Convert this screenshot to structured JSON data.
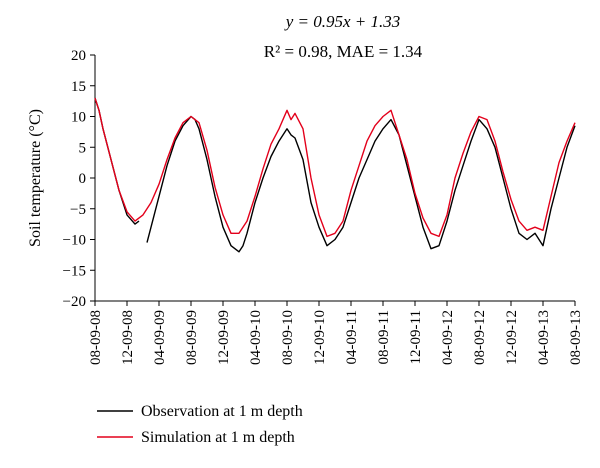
{
  "chart_data": {
    "type": "line",
    "title": "",
    "xlabel": "",
    "ylabel": "Soil temperature (°C)",
    "annotation": {
      "line1": "y = 0.95x + 1.33",
      "line2": "R² = 0.98, MAE = 1.34"
    },
    "ylim": [
      -20,
      20
    ],
    "yticks": [
      20,
      15,
      10,
      5,
      0,
      -5,
      -10,
      -15,
      -20
    ],
    "ytick_labels": [
      "20",
      "15",
      "10",
      "5",
      "0",
      "−5",
      "−10",
      "−15",
      "−20"
    ],
    "xlim": [
      0,
      60
    ],
    "xticks": [
      0,
      4,
      8,
      12,
      16,
      20,
      24,
      28,
      32,
      36,
      40,
      44,
      48,
      52,
      56,
      60
    ],
    "xtick_labels": [
      "08-09-08",
      "12-09-08",
      "04-09-09",
      "08-09-09",
      "12-09-09",
      "04-09-10",
      "08-09-10",
      "12-09-10",
      "04-09-11",
      "08-09-11",
      "12-09-11",
      "04-09-12",
      "08-09-12",
      "12-09-12",
      "04-09-13",
      "08-09-13"
    ],
    "grid": false,
    "legend_position": "bottom",
    "series": [
      {
        "name": "Observation at 1 m depth",
        "color": "#000000",
        "segments": [
          {
            "x": [
              0,
              0.5,
              1,
              2,
              3,
              4,
              5,
              5.5
            ],
            "y": [
              13,
              11,
              8,
              3,
              -2,
              -6,
              -7.5,
              -7
            ]
          },
          {
            "x": [
              6.5,
              7,
              8,
              9,
              10,
              11,
              12,
              12.5,
              13,
              14,
              15,
              16,
              17,
              18,
              18.5,
              19,
              20,
              21,
              22,
              23,
              24,
              24.5,
              25,
              26,
              27,
              28,
              29,
              30,
              31,
              32,
              33,
              34,
              35,
              36,
              37,
              38,
              39,
              40,
              41,
              42,
              43,
              44,
              45,
              46,
              47,
              48,
              49,
              50,
              51,
              52,
              53,
              54,
              55,
              56,
              57,
              58,
              59,
              60
            ],
            "y": [
              -10.5,
              -8,
              -3,
              2,
              6,
              8.5,
              10,
              9.5,
              8,
              3,
              -3,
              -8,
              -11,
              -12,
              -11,
              -9,
              -4,
              0,
              3.5,
              6,
              8,
              7,
              6.5,
              3,
              -4,
              -8,
              -11,
              -10,
              -8,
              -4,
              0,
              3,
              6,
              8,
              9.5,
              7,
              2,
              -3,
              -8,
              -11.5,
              -11,
              -7,
              -2,
              2,
              6,
              9.5,
              8,
              5,
              0,
              -5,
              -9,
              -10,
              -9,
              -11,
              -5,
              0,
              5,
              8.5
            ]
          }
        ]
      },
      {
        "name": "Simulation at 1 m depth",
        "color": "#e3001b",
        "segments": [
          {
            "x": [
              0,
              0.5,
              1,
              2,
              3,
              4,
              5,
              6,
              6.5,
              7,
              8,
              9,
              10,
              11,
              12,
              13,
              14,
              15,
              16,
              17,
              18,
              19,
              20,
              21,
              22,
              23,
              24,
              24.5,
              25,
              26,
              27,
              28,
              29,
              30,
              31,
              32,
              33,
              34,
              35,
              36,
              37,
              38,
              39,
              40,
              41,
              42,
              43,
              44,
              45,
              46,
              47,
              48,
              49,
              50,
              51,
              52,
              53,
              54,
              55,
              56,
              57,
              58,
              59,
              60
            ],
            "y": [
              13,
              11,
              8,
              3,
              -2,
              -5.5,
              -7,
              -6,
              -5,
              -4,
              -1,
              3,
              6.5,
              9,
              10,
              9,
              4.5,
              -1.5,
              -6,
              -9,
              -9,
              -7,
              -3,
              1.5,
              5.5,
              8,
              11,
              9.5,
              10.5,
              8,
              0,
              -6,
              -9.5,
              -9,
              -7,
              -2,
              2,
              6,
              8.5,
              10,
              11,
              7,
              3,
              -2.5,
              -6.5,
              -9,
              -9.5,
              -6,
              0,
              4,
              7.5,
              10,
              9.5,
              6,
              1,
              -3.5,
              -7,
              -8.5,
              -8,
              -8.5,
              -3,
              2.5,
              6,
              9
            ]
          }
        ]
      }
    ]
  }
}
